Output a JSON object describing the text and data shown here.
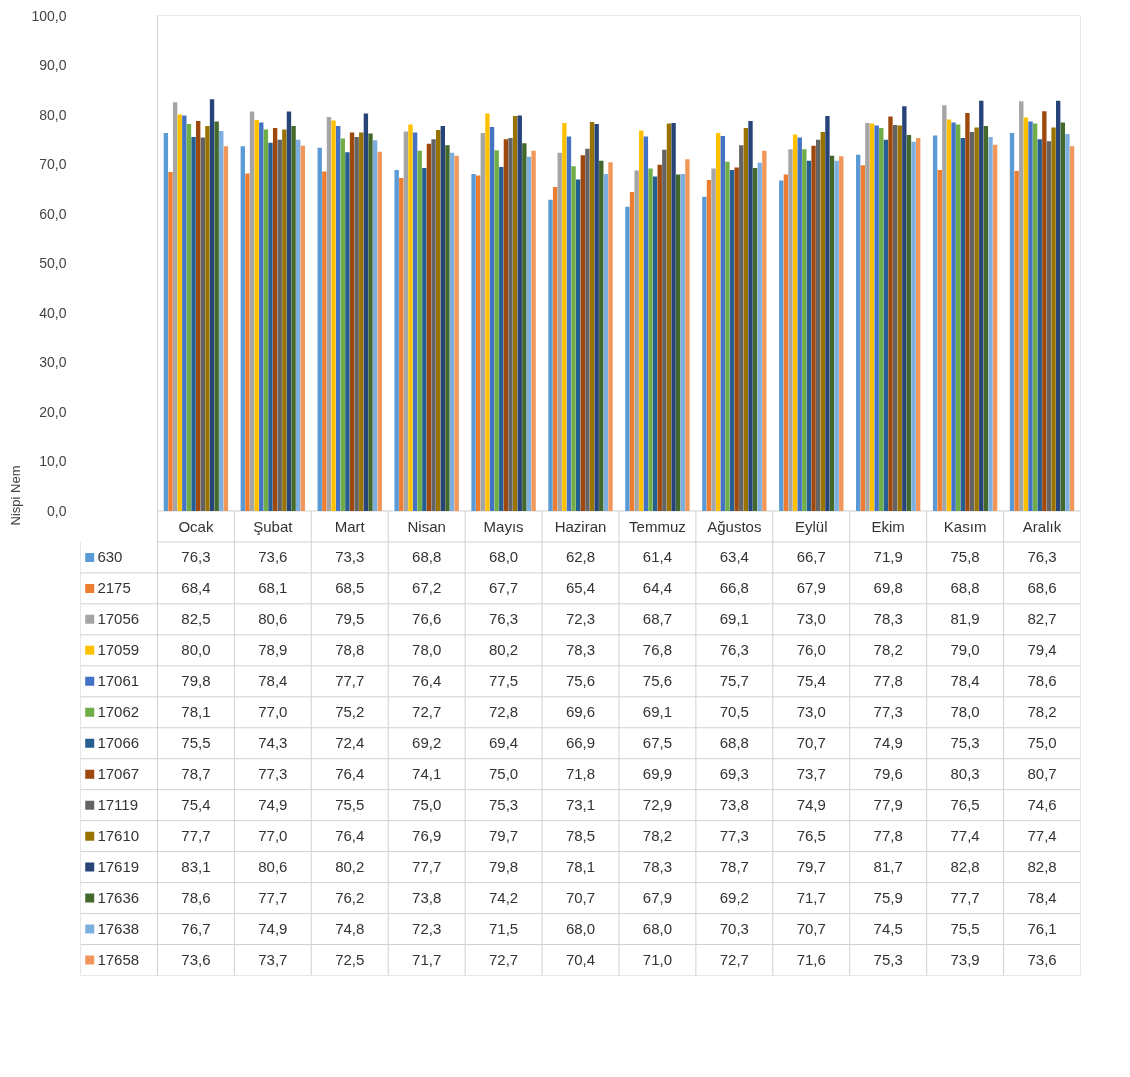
{
  "chart_data": {
    "type": "bar",
    "ylabel": "Nispi Nem",
    "legend": "bottom left",
    "categories": [
      "Ocak",
      "Şubat",
      "Mart",
      "Nisan",
      "Mayıs",
      "Haziran",
      "Temmuz",
      "Ağustos",
      "Eylül",
      "Ekim",
      "Kasım",
      "Aralık"
    ],
    "ylim": [
      0,
      100
    ],
    "yticks": [
      {
        "value": 0,
        "label": "0,0"
      },
      {
        "value": 10,
        "label": "10,0"
      },
      {
        "value": 20,
        "label": "20,0"
      },
      {
        "value": 30,
        "label": "30,0"
      },
      {
        "value": 40,
        "label": "40,0"
      },
      {
        "value": 50,
        "label": "50,0"
      },
      {
        "value": 60,
        "label": "60,0"
      },
      {
        "value": 70,
        "label": "70,0"
      },
      {
        "value": 80,
        "label": "80,0"
      },
      {
        "value": 90,
        "label": "90,0"
      },
      {
        "value": 100,
        "label": "100,0"
      }
    ],
    "series": [
      {
        "name": "630",
        "color": "#5b9bd5",
        "values": [
          76.3,
          73.6,
          73.3,
          68.8,
          68.0,
          62.8,
          61.4,
          63.4,
          66.7,
          71.9,
          75.8,
          76.3
        ],
        "value_labels": [
          "76,3",
          "73,6",
          "73,3",
          "68,8",
          "68,0",
          "62,8",
          "61,4",
          "63,4",
          "66,7",
          "71,9",
          "75,8",
          "76,3"
        ]
      },
      {
        "name": "2175",
        "color": "#ed7d31",
        "values": [
          68.4,
          68.1,
          68.5,
          67.2,
          67.7,
          65.4,
          64.4,
          66.8,
          67.9,
          69.8,
          68.8,
          68.6
        ],
        "value_labels": [
          "68,4",
          "68,1",
          "68,5",
          "67,2",
          "67,7",
          "65,4",
          "64,4",
          "66,8",
          "67,9",
          "69,8",
          "68,8",
          "68,6"
        ]
      },
      {
        "name": "17056",
        "color": "#a5a5a5",
        "values": [
          82.5,
          80.6,
          79.5,
          76.6,
          76.3,
          72.3,
          68.7,
          69.1,
          73.0,
          78.3,
          81.9,
          82.7
        ],
        "value_labels": [
          "82,5",
          "80,6",
          "79,5",
          "76,6",
          "76,3",
          "72,3",
          "68,7",
          "69,1",
          "73,0",
          "78,3",
          "81,9",
          "82,7"
        ]
      },
      {
        "name": "17059",
        "color": "#ffc000",
        "values": [
          80.0,
          78.9,
          78.8,
          78.0,
          80.2,
          78.3,
          76.8,
          76.3,
          76.0,
          78.2,
          79.0,
          79.4
        ],
        "value_labels": [
          "80,0",
          "78,9",
          "78,8",
          "78,0",
          "80,2",
          "78,3",
          "76,8",
          "76,3",
          "76,0",
          "78,2",
          "79,0",
          "79,4"
        ]
      },
      {
        "name": "17061",
        "color": "#4472c4",
        "values": [
          79.8,
          78.4,
          77.7,
          76.4,
          77.5,
          75.6,
          75.6,
          75.7,
          75.4,
          77.8,
          78.4,
          78.6
        ],
        "value_labels": [
          "79,8",
          "78,4",
          "77,7",
          "76,4",
          "77,5",
          "75,6",
          "75,6",
          "75,7",
          "75,4",
          "77,8",
          "78,4",
          "78,6"
        ]
      },
      {
        "name": "17062",
        "color": "#70ad47",
        "values": [
          78.1,
          77.0,
          75.2,
          72.7,
          72.8,
          69.6,
          69.1,
          70.5,
          73.0,
          77.3,
          78.0,
          78.2
        ],
        "value_labels": [
          "78,1",
          "77,0",
          "75,2",
          "72,7",
          "72,8",
          "69,6",
          "69,1",
          "70,5",
          "73,0",
          "77,3",
          "78,0",
          "78,2"
        ]
      },
      {
        "name": "17066",
        "color": "#255e91",
        "values": [
          75.5,
          74.3,
          72.4,
          69.2,
          69.4,
          66.9,
          67.5,
          68.8,
          70.7,
          74.9,
          75.3,
          75.0
        ],
        "value_labels": [
          "75,5",
          "74,3",
          "72,4",
          "69,2",
          "69,4",
          "66,9",
          "67,5",
          "68,8",
          "70,7",
          "74,9",
          "75,3",
          "75,0"
        ]
      },
      {
        "name": "17067",
        "color": "#9e480e",
        "values": [
          78.7,
          77.3,
          76.4,
          74.1,
          75.0,
          71.8,
          69.9,
          69.3,
          73.7,
          79.6,
          80.3,
          80.7
        ],
        "value_labels": [
          "78,7",
          "77,3",
          "76,4",
          "74,1",
          "75,0",
          "71,8",
          "69,9",
          "69,3",
          "73,7",
          "79,6",
          "80,3",
          "80,7"
        ]
      },
      {
        "name": "17119",
        "color": "#636363",
        "values": [
          75.4,
          74.9,
          75.5,
          75.0,
          75.3,
          73.1,
          72.9,
          73.8,
          74.9,
          77.9,
          76.5,
          74.6
        ],
        "value_labels": [
          "75,4",
          "74,9",
          "75,5",
          "75,0",
          "75,3",
          "73,1",
          "72,9",
          "73,8",
          "74,9",
          "77,9",
          "76,5",
          "74,6"
        ]
      },
      {
        "name": "17610",
        "color": "#997300",
        "values": [
          77.7,
          77.0,
          76.4,
          76.9,
          79.7,
          78.5,
          78.2,
          77.3,
          76.5,
          77.8,
          77.4,
          77.4
        ],
        "value_labels": [
          "77,7",
          "77,0",
          "76,4",
          "76,9",
          "79,7",
          "78,5",
          "78,2",
          "77,3",
          "76,5",
          "77,8",
          "77,4",
          "77,4"
        ]
      },
      {
        "name": "17619",
        "color": "#264478",
        "values": [
          83.1,
          80.6,
          80.2,
          77.7,
          79.8,
          78.1,
          78.3,
          78.7,
          79.7,
          81.7,
          82.8,
          82.8
        ],
        "value_labels": [
          "83,1",
          "80,6",
          "80,2",
          "77,7",
          "79,8",
          "78,1",
          "78,3",
          "78,7",
          "79,7",
          "81,7",
          "82,8",
          "82,8"
        ]
      },
      {
        "name": "17636",
        "color": "#43682b",
        "values": [
          78.6,
          77.7,
          76.2,
          73.8,
          74.2,
          70.7,
          67.9,
          69.2,
          71.7,
          75.9,
          77.7,
          78.4
        ],
        "value_labels": [
          "78,6",
          "77,7",
          "76,2",
          "73,8",
          "74,2",
          "70,7",
          "67,9",
          "69,2",
          "71,7",
          "75,9",
          "77,7",
          "78,4"
        ]
      },
      {
        "name": "17638",
        "color": "#7cafdd",
        "values": [
          76.7,
          74.9,
          74.8,
          72.3,
          71.5,
          68.0,
          68.0,
          70.3,
          70.7,
          74.5,
          75.5,
          76.1
        ],
        "value_labels": [
          "76,7",
          "74,9",
          "74,8",
          "72,3",
          "71,5",
          "68,0",
          "68,0",
          "70,3",
          "70,7",
          "74,5",
          "75,5",
          "76,1"
        ]
      },
      {
        "name": "17658",
        "color": "#f1975a",
        "values": [
          73.6,
          73.7,
          72.5,
          71.7,
          72.7,
          70.4,
          71.0,
          72.7,
          71.6,
          75.3,
          73.9,
          73.6
        ],
        "value_labels": [
          "73,6",
          "73,7",
          "72,5",
          "71,7",
          "72,7",
          "70,4",
          "71,0",
          "72,7",
          "71,6",
          "75,3",
          "73,9",
          "73,6"
        ]
      }
    ]
  }
}
